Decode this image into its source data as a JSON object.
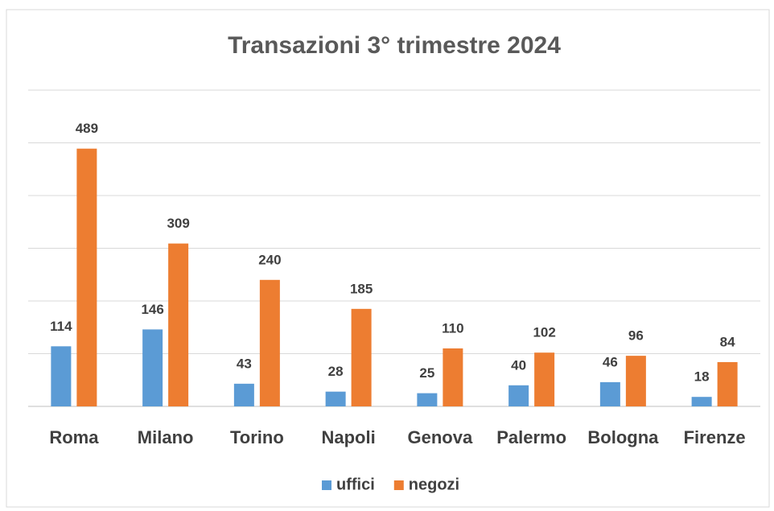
{
  "chart_data": {
    "type": "bar",
    "title": "Transazioni 3° trimestre 2024",
    "categories": [
      "Roma",
      "Milano",
      "Torino",
      "Napoli",
      "Genova",
      "Palermo",
      "Bologna",
      "Firenze"
    ],
    "series": [
      {
        "name": "uffici",
        "color": "#5b9bd5",
        "values": [
          114,
          146,
          43,
          28,
          25,
          40,
          46,
          18
        ]
      },
      {
        "name": "negozi",
        "color": "#ed7d31",
        "values": [
          489,
          309,
          240,
          185,
          110,
          102,
          96,
          84
        ]
      }
    ],
    "ylim": [
      0,
      600
    ],
    "yticks": [
      0,
      100,
      200,
      300,
      400,
      500,
      600
    ],
    "grid": true,
    "legend": "bottom"
  }
}
